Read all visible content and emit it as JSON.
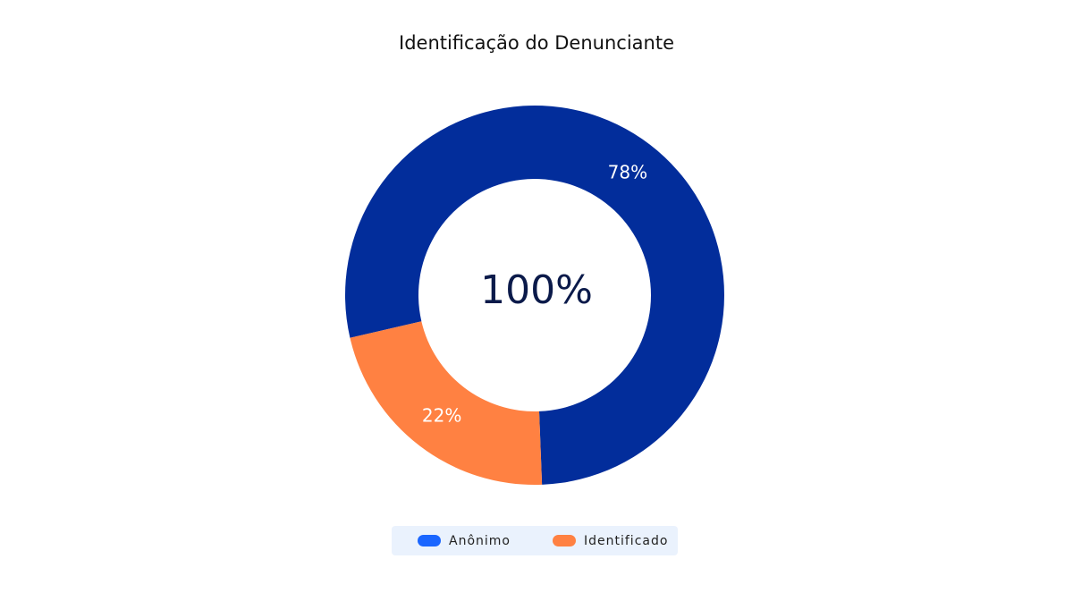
{
  "chart_data": {
    "type": "pie",
    "title": "Identificação do Denunciante",
    "center_label": "100%",
    "categories": [
      "Anônimo",
      "Identificado"
    ],
    "values": [
      78,
      22
    ],
    "value_labels": [
      "78%",
      "22%"
    ],
    "colors": [
      "#022d9b",
      "#ff8142"
    ],
    "legend_colors": [
      "#1a66ff",
      "#ff8142"
    ]
  }
}
